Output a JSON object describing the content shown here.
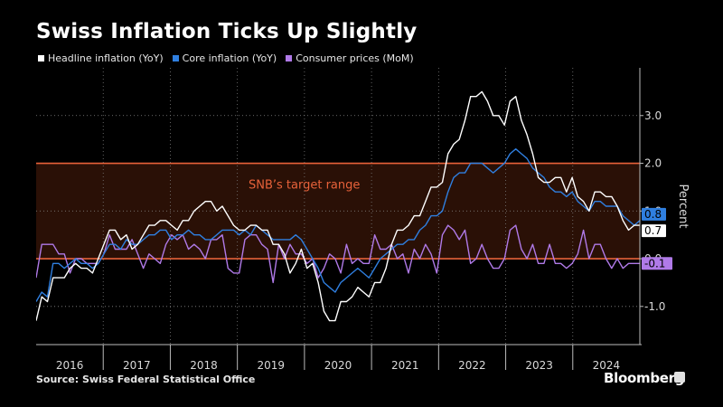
{
  "title": "Swiss Inflation Ticks Up Slightly",
  "source": "Source:  Swiss Federal Statistical Office",
  "brand": "Bloomberg",
  "legend": [
    {
      "label": "Headline inflation (YoY)",
      "color": "#ffffff"
    },
    {
      "label": "Core inflation (YoY)",
      "color": "#2f7fe0"
    },
    {
      "label": "Consumer prices (MoM)",
      "color": "#b07ae8"
    }
  ],
  "chart_data": {
    "type": "line",
    "ylabel": "Percent",
    "ylim": [
      -1.8,
      4.0
    ],
    "yticks": [
      3.0,
      2.0,
      1.0,
      0.0,
      -1.0
    ],
    "ytick_labels": [
      "3.0",
      "2.0",
      "1.0",
      "0.0",
      "-1.0"
    ],
    "years": [
      "2016",
      "2017",
      "2018",
      "2019",
      "2020",
      "2021",
      "2022",
      "2023",
      "2024"
    ],
    "x_start": "2016-01",
    "x_end": "2024-12",
    "target_range": {
      "low": 0.0,
      "high": 2.0,
      "label": "SNB’s target range",
      "color": "#e8623a"
    },
    "end_labels": [
      {
        "series": "Core inflation (YoY)",
        "text": "0.8",
        "value": 0.8,
        "color": "#2f7fe0"
      },
      {
        "series": "Headline inflation (YoY)",
        "text": "0.7",
        "value": 0.7,
        "color": "#ffffff"
      },
      {
        "series": "Consumer prices (MoM)",
        "text": "-0.1",
        "value": -0.1,
        "color": "#b07ae8"
      }
    ],
    "series": [
      {
        "name": "Headline inflation (YoY)",
        "color": "#ffffff",
        "values": [
          -1.3,
          -0.8,
          -0.9,
          -0.4,
          -0.4,
          -0.4,
          -0.2,
          -0.1,
          -0.2,
          -0.2,
          -0.3,
          0.0,
          0.3,
          0.6,
          0.6,
          0.4,
          0.5,
          0.2,
          0.3,
          0.5,
          0.7,
          0.7,
          0.8,
          0.8,
          0.7,
          0.6,
          0.8,
          0.8,
          1.0,
          1.1,
          1.2,
          1.2,
          1.0,
          1.1,
          0.9,
          0.7,
          0.6,
          0.6,
          0.7,
          0.7,
          0.6,
          0.6,
          0.3,
          0.3,
          0.1,
          -0.3,
          -0.1,
          0.2,
          -0.2,
          -0.1,
          -0.5,
          -1.1,
          -1.3,
          -1.3,
          -0.9,
          -0.9,
          -0.8,
          -0.6,
          -0.7,
          -0.8,
          -0.5,
          -0.5,
          -0.2,
          0.3,
          0.6,
          0.6,
          0.7,
          0.9,
          0.9,
          1.2,
          1.5,
          1.5,
          1.6,
          2.2,
          2.4,
          2.5,
          2.9,
          3.4,
          3.4,
          3.5,
          3.3,
          3.0,
          3.0,
          2.8,
          3.3,
          3.4,
          2.9,
          2.6,
          2.2,
          1.7,
          1.6,
          1.6,
          1.7,
          1.7,
          1.4,
          1.7,
          1.3,
          1.2,
          1.0,
          1.4,
          1.4,
          1.3,
          1.3,
          1.1,
          0.8,
          0.6,
          0.7,
          0.7
        ]
      },
      {
        "name": "Core inflation (YoY)",
        "color": "#2f7fe0",
        "values": [
          -0.9,
          -0.7,
          -0.8,
          -0.1,
          -0.1,
          -0.2,
          -0.1,
          0.0,
          -0.1,
          -0.1,
          -0.2,
          -0.1,
          0.1,
          0.3,
          0.3,
          0.2,
          0.4,
          0.3,
          0.3,
          0.4,
          0.5,
          0.5,
          0.6,
          0.6,
          0.4,
          0.5,
          0.5,
          0.6,
          0.5,
          0.5,
          0.4,
          0.4,
          0.5,
          0.6,
          0.6,
          0.6,
          0.5,
          0.6,
          0.5,
          0.7,
          0.6,
          0.5,
          0.4,
          0.4,
          0.4,
          0.4,
          0.5,
          0.4,
          0.2,
          0.0,
          -0.2,
          -0.5,
          -0.6,
          -0.7,
          -0.5,
          -0.4,
          -0.3,
          -0.2,
          -0.3,
          -0.4,
          -0.2,
          0.0,
          0.1,
          0.2,
          0.3,
          0.3,
          0.4,
          0.4,
          0.6,
          0.7,
          0.9,
          0.9,
          1.0,
          1.4,
          1.7,
          1.8,
          1.8,
          2.0,
          2.0,
          2.0,
          1.9,
          1.8,
          1.9,
          2.0,
          2.2,
          2.3,
          2.2,
          2.1,
          1.9,
          1.8,
          1.7,
          1.5,
          1.4,
          1.4,
          1.3,
          1.4,
          1.2,
          1.1,
          1.0,
          1.2,
          1.2,
          1.1,
          1.1,
          1.1,
          0.9,
          0.8,
          0.7,
          0.8
        ]
      },
      {
        "name": "Consumer prices (MoM)",
        "color": "#b07ae8",
        "values": [
          -0.4,
          0.3,
          0.3,
          0.3,
          0.1,
          0.1,
          -0.3,
          0.0,
          0.0,
          -0.1,
          -0.1,
          -0.1,
          0.1,
          0.5,
          0.2,
          0.2,
          0.2,
          0.4,
          0.1,
          -0.2,
          0.1,
          0.0,
          -0.1,
          0.3,
          0.5,
          0.4,
          0.5,
          0.2,
          0.3,
          0.2,
          0.0,
          0.4,
          0.4,
          0.5,
          -0.2,
          -0.3,
          -0.3,
          0.4,
          0.5,
          0.5,
          0.3,
          0.2,
          -0.5,
          0.3,
          0.0,
          0.3,
          0.1,
          0.1,
          -0.1,
          0.0,
          -0.4,
          -0.2,
          0.1,
          0.0,
          -0.3,
          0.3,
          -0.1,
          0.0,
          -0.1,
          -0.1,
          0.5,
          0.2,
          0.2,
          0.3,
          0.0,
          0.1,
          -0.3,
          0.2,
          0.0,
          0.3,
          0.1,
          -0.3,
          0.5,
          0.7,
          0.6,
          0.4,
          0.6,
          -0.1,
          0.0,
          0.3,
          0.0,
          -0.2,
          -0.2,
          0.0,
          0.6,
          0.7,
          0.2,
          0.0,
          0.3,
          -0.1,
          -0.1,
          0.3,
          -0.1,
          -0.1,
          -0.2,
          -0.1,
          0.1,
          0.6,
          0.0,
          0.3,
          0.3,
          0.0,
          -0.2,
          0.0,
          -0.2,
          -0.1,
          -0.1,
          -0.1
        ]
      }
    ]
  }
}
